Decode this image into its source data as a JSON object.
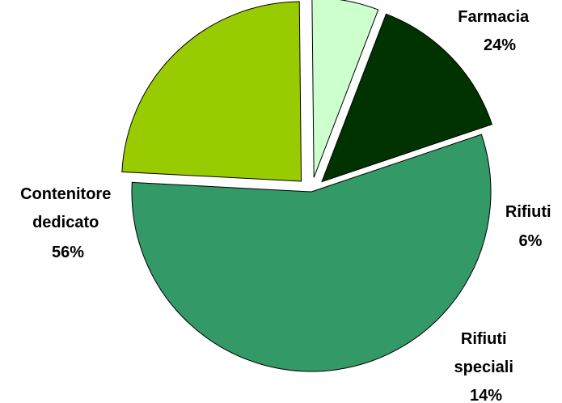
{
  "chart_data": {
    "type": "pie",
    "title": "",
    "slices": [
      {
        "label_lines": [
          "Farmacia",
          "24%"
        ],
        "value": 24,
        "color": "#99cc00"
      },
      {
        "label_lines": [
          "Rifiuti",
          "6%"
        ],
        "value": 6,
        "color": "#ccffcc"
      },
      {
        "label_lines": [
          "Rifiuti",
          "speciali",
          "14%"
        ],
        "value": 14,
        "color": "#003300"
      },
      {
        "label_lines": [
          "Contenitore",
          "dedicato",
          "56%"
        ],
        "value": 56,
        "color": "#339966"
      }
    ]
  }
}
